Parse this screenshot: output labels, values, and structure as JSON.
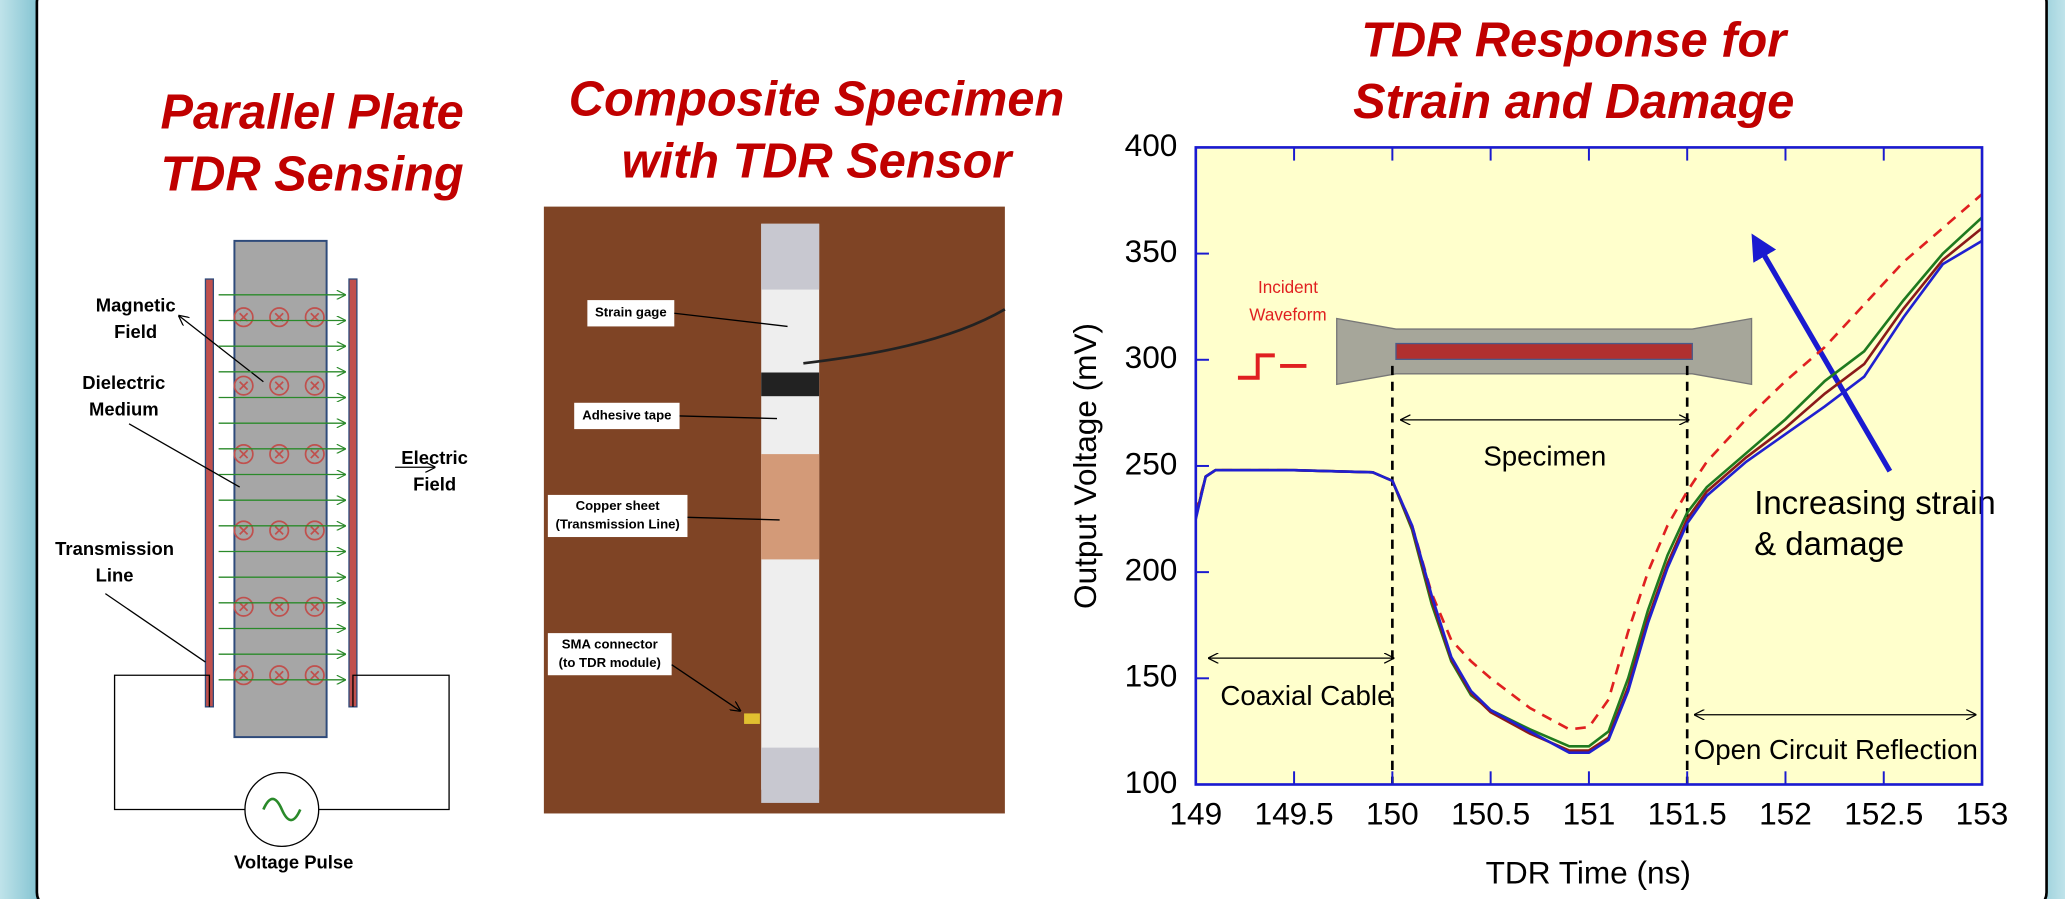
{
  "left_panel": {
    "title_lines": [
      "Parallel Plate",
      "TDR Sensing"
    ],
    "labels": {
      "magnetic_field": [
        "Magnetic",
        "Field"
      ],
      "dielectric_medium": [
        "Dielectric",
        "Medium"
      ],
      "electric_field": [
        "Electric",
        "Field"
      ],
      "transmission_line": [
        "Transmission",
        "Line"
      ],
      "voltage_pulse": "Voltage Pulse"
    }
  },
  "middle_panel": {
    "title_lines": [
      "Composite Specimen",
      "with TDR Sensor"
    ],
    "labels": {
      "strain_gage": "Strain gage",
      "adhesive_tape": "Adhesive tape",
      "copper_sheet": [
        "Copper sheet",
        "(Transmission Line)"
      ],
      "sma_connector": [
        "SMA connector",
        "(to TDR module)"
      ]
    }
  },
  "chart_data": {
    "type": "line",
    "title_lines": [
      "TDR Response for",
      "Strain and Damage"
    ],
    "x_label": "TDR Time (ns)",
    "y_label": "Output Voltage (mV)",
    "x": [
      149,
      149.05,
      149.1,
      149.5,
      149.9,
      150,
      150.1,
      150.2,
      150.3,
      150.4,
      150.5,
      150.7,
      150.9,
      151,
      151.1,
      151.2,
      151.3,
      151.4,
      151.5,
      151.6,
      151.8,
      152,
      152.2,
      152.4,
      152.6,
      152.8,
      153
    ],
    "series": [
      {
        "color": "#e02020",
        "dash": true,
        "values": [
          228,
          245,
          248,
          248,
          247,
          243,
          222,
          190,
          168,
          158,
          150,
          136,
          126,
          127,
          140,
          172,
          200,
          222,
          238,
          252,
          272,
          290,
          306,
          326,
          346,
          362,
          378
        ]
      },
      {
        "color": "#1f7a1f",
        "values": [
          226,
          245,
          248,
          248,
          247,
          243,
          220,
          185,
          158,
          142,
          135,
          126,
          118,
          118,
          125,
          150,
          182,
          208,
          228,
          240,
          256,
          272,
          290,
          304,
          328,
          350,
          367
        ]
      },
      {
        "color": "#8b1a1a",
        "values": [
          226,
          245,
          248,
          248,
          247,
          243,
          221,
          187,
          159,
          143,
          134,
          124,
          116,
          116,
          122,
          146,
          178,
          204,
          225,
          238,
          254,
          268,
          284,
          298,
          324,
          347,
          362
        ]
      },
      {
        "color": "#2020d0",
        "values": [
          225,
          245,
          248,
          248,
          247,
          243,
          222,
          189,
          160,
          144,
          135,
          125,
          115,
          115,
          121,
          144,
          176,
          202,
          223,
          236,
          252,
          265,
          278,
          292,
          320,
          345,
          356
        ]
      }
    ],
    "xlim": [
      149,
      153
    ],
    "ylim": [
      100,
      400
    ],
    "xticks": [
      149,
      149.5,
      150,
      150.5,
      151,
      151.5,
      152,
      152.5,
      153
    ],
    "yticks": [
      100,
      150,
      200,
      250,
      300,
      350,
      400
    ],
    "dividers": [
      150,
      151.5
    ],
    "annotations": {
      "incident_waveform": [
        "Incident",
        "Waveform"
      ],
      "specimen": "Specimen",
      "coaxial_cable": "Coaxial Cable",
      "open_circuit": "Open Circuit Reflection",
      "increasing": [
        "Increasing strain",
        "& damage"
      ]
    }
  }
}
